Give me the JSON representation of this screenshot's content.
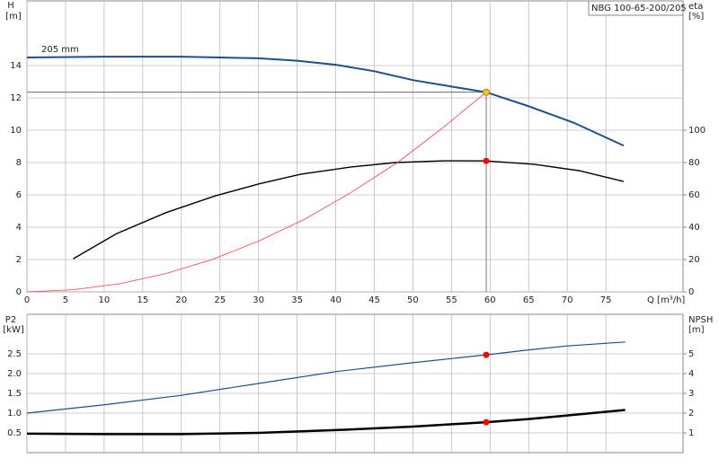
{
  "chart_data": [
    {
      "type": "line",
      "title": "NBG 100-65-200/205",
      "ylabel": "H",
      "yunit": "[m]",
      "y2label": "eta",
      "y2unit": "[%]",
      "xlabel": "Q [m³/h]",
      "xlim": [
        0,
        85
      ],
      "xticks": [
        0,
        5,
        10,
        15,
        20,
        25,
        30,
        35,
        40,
        45,
        50,
        55,
        60,
        65,
        70,
        75
      ],
      "ylim": [
        0,
        18
      ],
      "yticks": [
        0,
        2,
        4,
        6,
        8,
        10,
        12,
        14
      ],
      "y2lim": [
        0,
        180
      ],
      "y2ticks": [
        0,
        20,
        40,
        60,
        80,
        100
      ],
      "grid": true,
      "series": [
        {
          "name": "205 mm",
          "color": "#1f4e8c",
          "width": 2,
          "x": [
            0,
            10,
            20,
            25,
            30,
            35,
            40,
            45,
            50,
            55,
            59.5,
            64.9,
            70.9,
            77.3
          ],
          "values": [
            14.5,
            14.55,
            14.55,
            14.5,
            14.45,
            14.3,
            14.05,
            13.65,
            13.1,
            12.7,
            12.35,
            11.5,
            10.45,
            9.05
          ]
        },
        {
          "color": "#000000",
          "width": 1.4,
          "axis": "y2",
          "x": [
            6,
            11.6,
            18,
            24.4,
            30.2,
            35.5,
            41.9,
            47.7,
            54,
            59.4,
            65.7,
            71.5,
            77.3
          ],
          "values": [
            20.5,
            36,
            49,
            59.4,
            67,
            72.8,
            77.2,
            80,
            81.1,
            81,
            78.9,
            75,
            68.3
          ]
        },
        {
          "color": "#ff3b3b",
          "width": 0.8,
          "x": [
            0,
            6,
            12,
            18,
            24,
            30,
            36,
            42,
            48,
            54,
            59.5
          ],
          "values": [
            0,
            0.13,
            0.5,
            1.13,
            2,
            3.14,
            4.5,
            6.15,
            8,
            10.2,
            12.35
          ]
        }
      ],
      "points": [
        {
          "x": 59.5,
          "y": 12.35,
          "color": "#f5c518",
          "guides": true
        },
        {
          "x": 59.5,
          "y": 81,
          "axis": "y2",
          "color": "#ff0000"
        }
      ]
    },
    {
      "type": "line",
      "ylabel": "P2",
      "yunit": "[kW]",
      "y2label": "NPSH",
      "y2unit": "[m]",
      "xlim": [
        0,
        85
      ],
      "xticks": [
        0,
        5,
        10,
        15,
        20,
        25,
        30,
        35,
        40,
        45,
        50,
        55,
        60,
        65,
        70,
        75
      ],
      "ylim": [
        0,
        3.5
      ],
      "yticks": [
        0.5,
        {
          "value": 1,
          "label": "1.0"
        },
        1.5,
        {
          "value": 2,
          "label": "2.0"
        },
        2.5
      ],
      "y2lim": [
        0,
        7
      ],
      "y2ticks": [
        1,
        2,
        3,
        4,
        5
      ],
      "grid": true,
      "series": [
        {
          "color": "#000000",
          "width": 2.5,
          "x": [
            0,
            10,
            20,
            30,
            40,
            50,
            59.5,
            65,
            70,
            77.5
          ],
          "values": [
            0.48,
            0.47,
            0.47,
            0.5,
            0.57,
            0.66,
            0.77,
            0.85,
            0.94,
            1.08
          ]
        },
        {
          "color": "#1f4e8c",
          "width": 1.2,
          "axis": "y2",
          "x": [
            0,
            10,
            20,
            30,
            40,
            50,
            59.5,
            65,
            70,
            77.5
          ],
          "values": [
            2,
            2.42,
            2.9,
            3.5,
            4.1,
            4.55,
            4.95,
            5.2,
            5.4,
            5.6
          ]
        }
      ],
      "points": [
        {
          "x": 59.5,
          "y": 0.77,
          "color": "#ff0000"
        },
        {
          "x": 59.5,
          "y": 4.95,
          "axis": "y2",
          "color": "#ff0000"
        }
      ]
    }
  ]
}
